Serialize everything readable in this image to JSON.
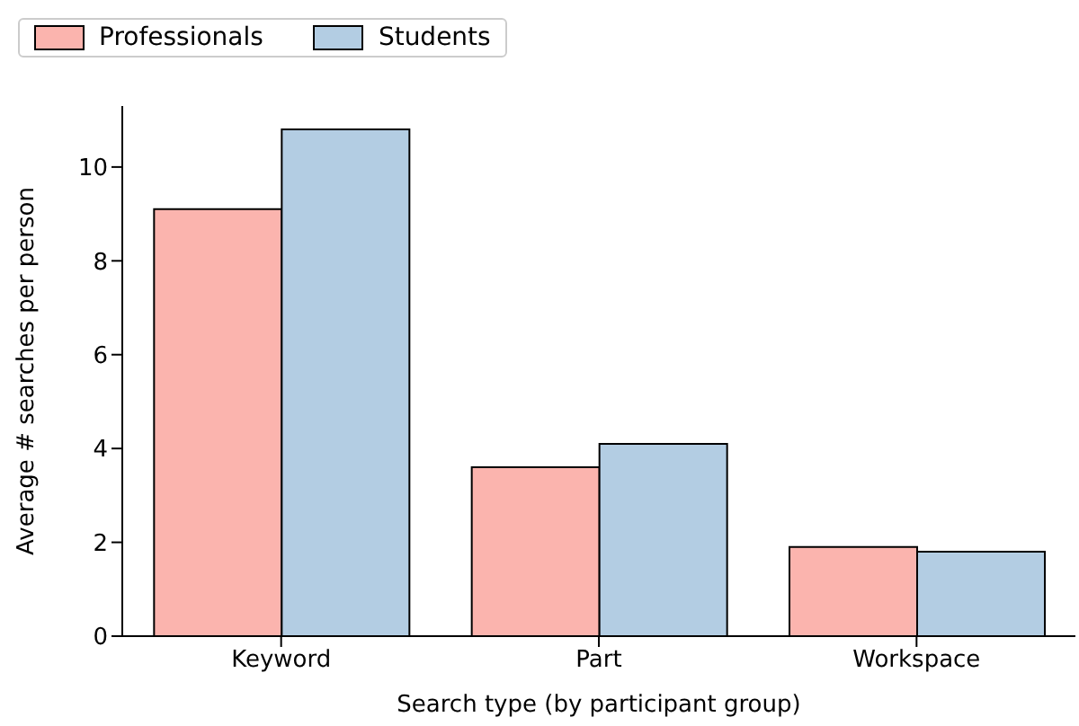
{
  "chart_data": {
    "type": "bar",
    "xlabel": "Search type (by participant group)",
    "ylabel": "Average # searches per person",
    "categories": [
      "Keyword",
      "Part",
      "Workspace"
    ],
    "series": [
      {
        "name": "Professionals",
        "color": "#fbb4ae",
        "values": [
          9.1,
          3.6,
          1.9
        ]
      },
      {
        "name": "Students",
        "color": "#b3cde3",
        "values": [
          10.8,
          4.1,
          1.8
        ]
      }
    ],
    "ylim": [
      0,
      11.3
    ],
    "yticks": [
      0,
      2,
      4,
      6,
      8,
      10
    ],
    "grid": false,
    "legend": "top"
  }
}
